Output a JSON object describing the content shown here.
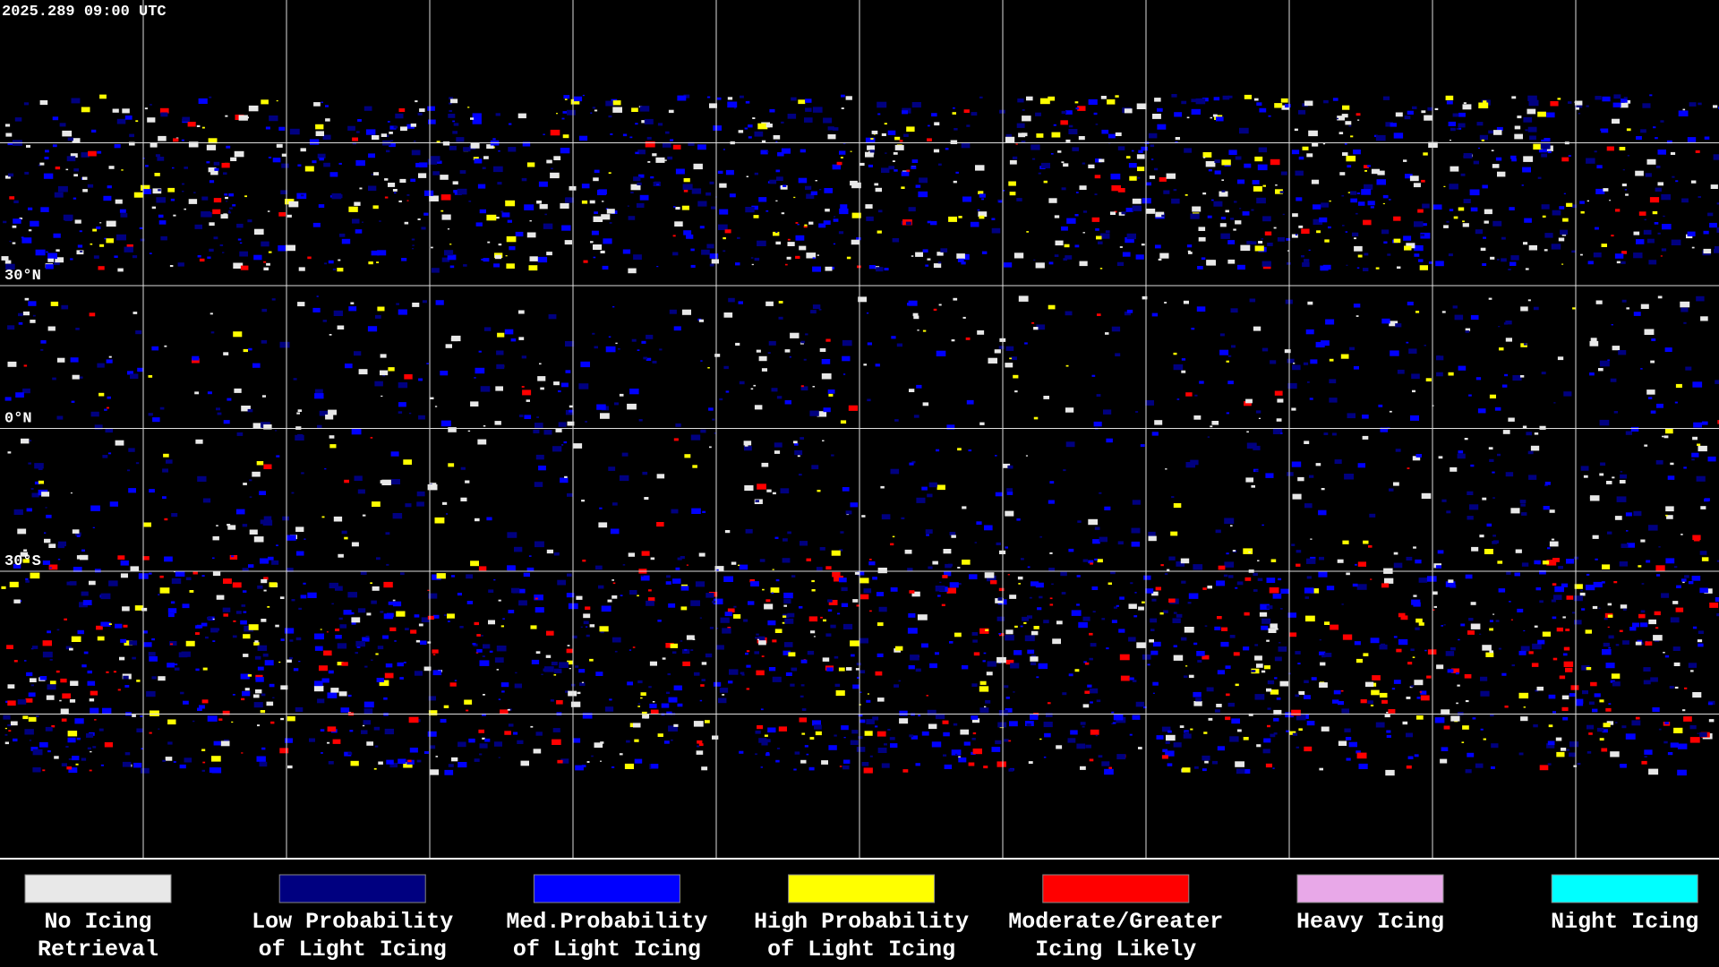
{
  "timestamp": "2025.289 09:00 UTC",
  "latitude_labels": [
    "30°N",
    "0°N",
    "30°S"
  ],
  "legend": [
    {
      "label": [
        "No Icing",
        "Retrieval"
      ],
      "color": "#e8e8e8"
    },
    {
      "label": [
        "Low Probability",
        "of Light Icing"
      ],
      "color": "#000080"
    },
    {
      "label": [
        "Med.Probability",
        "of Light Icing"
      ],
      "color": "#0000ff"
    },
    {
      "label": [
        "High Probability",
        "of Light Icing"
      ],
      "color": "#ffff00"
    },
    {
      "label": [
        "Moderate/Greater",
        "Icing Likely"
      ],
      "color": "#ff0000"
    },
    {
      "label": [
        "Heavy Icing"
      ],
      "color": "#e8a8e8"
    },
    {
      "label": [
        "Night Icing"
      ],
      "color": "#00ffff"
    }
  ]
}
